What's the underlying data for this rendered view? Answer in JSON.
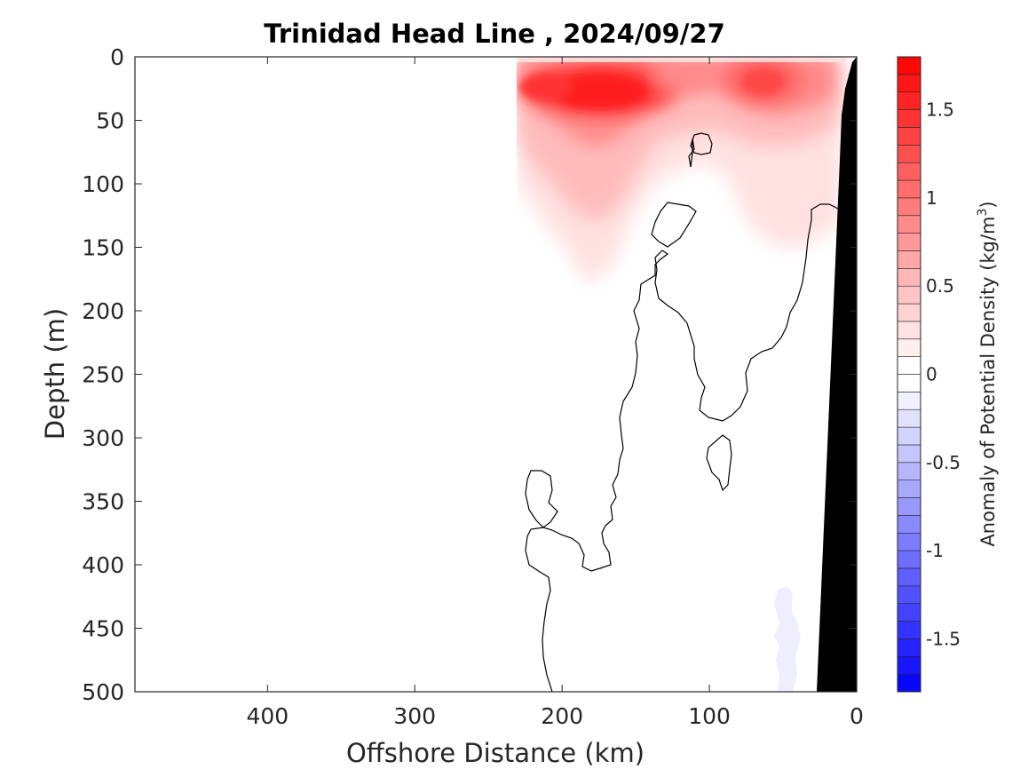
{
  "chart_data": {
    "type": "heatmap",
    "title": "Trinidad Head Line , 2024/09/27",
    "xlabel": "Offshore Distance (km)",
    "ylabel": "Depth (m)",
    "colorbar_label": "Anomaly of Potential Density (kg/m",
    "colorbar_label_sup": "3",
    "colorbar_label_close": ")",
    "xlim": [
      490,
      0
    ],
    "ylim": [
      500,
      0
    ],
    "x_ticks": [
      400,
      300,
      200,
      100,
      0
    ],
    "x_tick_labels": [
      "400",
      "300",
      "200",
      "100",
      "0"
    ],
    "y_ticks": [
      0,
      50,
      100,
      150,
      200,
      250,
      300,
      350,
      400,
      450,
      500
    ],
    "y_tick_labels": [
      "0",
      "50",
      "100",
      "150",
      "200",
      "250",
      "300",
      "350",
      "400",
      "450",
      "500"
    ],
    "clim": [
      -1.8,
      1.8
    ],
    "colorbar_step": 0.1,
    "colorbar_ticks": [
      1.5,
      1,
      0.5,
      0,
      -0.5,
      -1,
      -1.5
    ],
    "colorbar_tick_labels": [
      "1.5",
      "1",
      "0.5",
      "0",
      "-0.5",
      "-1",
      "-1.5"
    ],
    "colormap": {
      "positive": "#ff0000",
      "zero": "#ffffff",
      "negative": "#0000ff"
    },
    "data_extent_km": [
      0,
      230
    ],
    "grid": false,
    "features": [
      {
        "name": "surface-density-anomaly",
        "x_km": [
          230,
          8
        ],
        "depth_m": [
          0,
          200
        ],
        "peak_value": 1.7,
        "peak_location_km": 175,
        "peak_depth_m": 28
      },
      {
        "name": "deep-negative-anomaly",
        "x_km": [
          35,
          55
        ],
        "depth_m": [
          420,
          500
        ],
        "value": -0.1
      }
    ],
    "zero_contour": true,
    "bathymetry_color": "#000000"
  }
}
